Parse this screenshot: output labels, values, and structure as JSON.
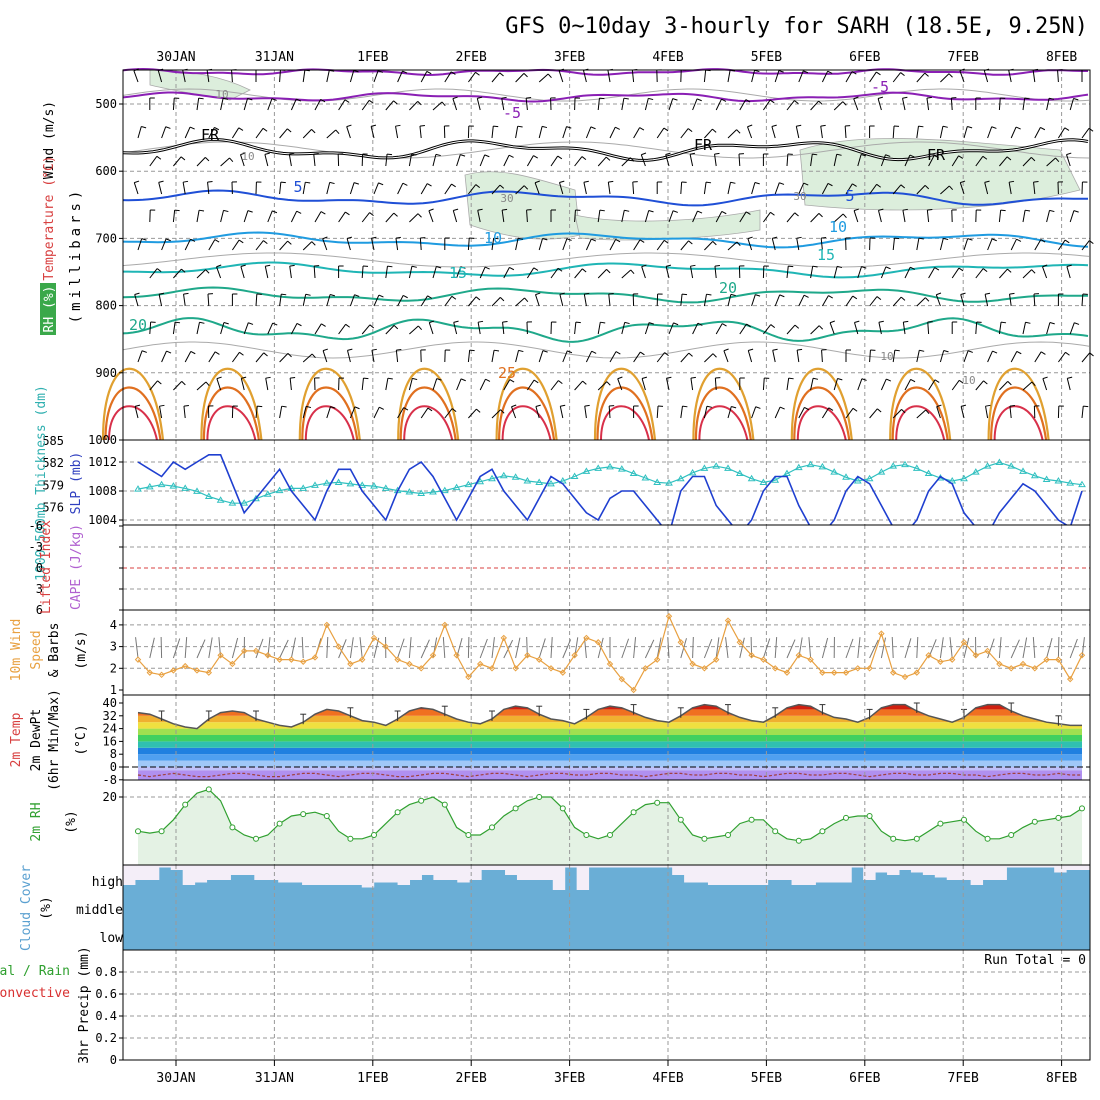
{
  "title": "GFS 0~10day 3-hourly for SARH (18.5E, 9.25N)",
  "dates": [
    "30JAN",
    "31JAN",
    "1FEB",
    "2FEB",
    "3FEB",
    "4FEB",
    "5FEB",
    "6FEB",
    "7FEB",
    "8FEB"
  ],
  "colors": {
    "grid": "#999999",
    "purple": "#8a1fb4",
    "freeze": "#000000",
    "blue": "#1f4fd6",
    "lightblue": "#1f9be0",
    "teal": "#1fb5b5",
    "tealgreen": "#1fa88a",
    "orange": "#e0a030",
    "darkorange": "#e07020",
    "red": "#d8304a",
    "slp": "#1f3fd0",
    "thick": "#30c0c0",
    "wind": "#e8a040",
    "rh": "#30a030",
    "cloud": "#6aaed6",
    "rhfill": "#e4f2e4"
  },
  "panels": {
    "upper": {
      "ylabel_wind": "Wind (m/s)",
      "ylabel_temp": "Temperature (°C)",
      "ylabel_rh": "RH (%)",
      "ylabel_mb": "(millibars)",
      "yticks": [
        "500",
        "600",
        "700",
        "800",
        "900",
        "1000"
      ],
      "contour_labels": [
        "-5",
        "-5",
        "FR",
        "FR",
        "FR",
        "5",
        "5",
        "10",
        "10",
        "15",
        "15",
        "20",
        "20",
        "25",
        "10",
        "10",
        "10",
        "30",
        "30",
        "10"
      ]
    },
    "slp": {
      "ylabel_thick": "1000-500mb Thickness (dm)",
      "ylabel_slp": "SLP (mb)",
      "thick_ticks": [
        "585",
        "582",
        "579",
        "576"
      ],
      "slp_ticks": [
        "1012",
        "1008",
        "1004"
      ]
    },
    "li": {
      "ylabel_li": "Lifted Index",
      "ylabel_cape": "CAPE (J/kg)",
      "ticks": [
        "-6",
        "-3",
        "0",
        "3",
        "6"
      ]
    },
    "wind10": {
      "ylabel1": "10m Wind",
      "ylabel2": "Speed",
      "ylabel3": "& Barbs",
      "ylabel_unit": "(m/s)",
      "ticks": [
        "4",
        "3",
        "2",
        "1"
      ]
    },
    "temp2m": {
      "ylabel1": "2m Temp",
      "ylabel2": "2m DewPt",
      "ylabel3": "(6hr Min/Max)",
      "ylabel_unit": "(°C)",
      "ticks": [
        "40",
        "32",
        "24",
        "16",
        "8",
        "0",
        "-8"
      ]
    },
    "rh2m": {
      "ylabel": "2m RH",
      "ylabel_unit": "(%)",
      "ticks": [
        "20"
      ]
    },
    "cloud": {
      "ylabel": "Cloud Cover",
      "ylabel_unit": "(%)",
      "levels": [
        "high",
        "middle",
        "low"
      ]
    },
    "precip": {
      "ylabel1": "Total / Rain",
      "ylabel2": "Convective",
      "ylabel3": "3hr Precip (mm)",
      "ticks": [
        "0.8",
        "0.6",
        "0.4",
        "0.2",
        "0"
      ],
      "run_total": "Run Total = 0"
    }
  },
  "chart_data": [
    {
      "type": "line",
      "panel": "slp",
      "series_label": "SLP (mb)",
      "ylim": [
        1000,
        1014
      ],
      "values": [
        1012,
        1011,
        1010,
        1012,
        1011,
        1012,
        1013,
        1013,
        1009,
        1005,
        1007,
        1009,
        1011,
        1008,
        1006,
        1004,
        1008,
        1011,
        1011,
        1008,
        1006,
        1004,
        1008,
        1011,
        1012,
        1010,
        1007,
        1004,
        1007,
        1010,
        1011,
        1008,
        1006,
        1004,
        1007,
        1010,
        1009,
        1007,
        1005,
        1004,
        1007,
        1008,
        1008,
        1006,
        1004,
        1002,
        1008,
        1010,
        1010,
        1006,
        1004,
        1002,
        1004,
        1008,
        1010,
        1010,
        1006,
        1003,
        1002,
        1004,
        1008,
        1010,
        1009,
        1006,
        1003,
        1002,
        1004,
        1008,
        1010,
        1009,
        1005,
        1003,
        1002,
        1005,
        1007,
        1009,
        1008,
        1006,
        1004,
        1003,
        1008
      ]
    },
    {
      "type": "line",
      "panel": "slp",
      "series_label": "1000-500mb Thickness (dm)",
      "ylim": [
        574,
        585
      ],
      "values": [
        578.5,
        578.8,
        579.1,
        578.9,
        578.6,
        578.2,
        577.5,
        577,
        576.6,
        576.6,
        577.2,
        577.8,
        578.3,
        578.6,
        578.6,
        579,
        579.3,
        579.4,
        579.2,
        579,
        578.9,
        578.6,
        578.3,
        578.1,
        577.9,
        578.1,
        578.3,
        578.7,
        579.1,
        579.5,
        579.9,
        580.3,
        580.1,
        579.6,
        579.4,
        579.2,
        579.6,
        580.2,
        580.9,
        581.3,
        581.5,
        581.2,
        580.6,
        580,
        579.4,
        579.3,
        579.9,
        580.7,
        581.3,
        581.6,
        581.3,
        580.6,
        579.9,
        579.4,
        579.7,
        580.6,
        581.4,
        581.8,
        581.5,
        580.8,
        580.1,
        579.6,
        579.9,
        580.8,
        581.6,
        581.8,
        581.3,
        580.6,
        580,
        579.6,
        579.9,
        580.8,
        581.6,
        582.1,
        581.6,
        580.9,
        580.3,
        579.8,
        579.6,
        579.3,
        579.1
      ]
    },
    {
      "type": "line",
      "panel": "wind10",
      "series_label": "10m Wind Speed (m/s)",
      "ylim": [
        0.9,
        4.6
      ],
      "values": [
        2.4,
        1.8,
        1.7,
        1.9,
        2.1,
        1.9,
        1.8,
        2.6,
        2.2,
        2.8,
        2.8,
        2.6,
        2.4,
        2.4,
        2.3,
        2.5,
        4.0,
        3.0,
        2.2,
        2.4,
        3.4,
        3.0,
        2.4,
        2.2,
        2.0,
        2.6,
        4.0,
        2.6,
        1.6,
        2.2,
        2.0,
        3.4,
        2.0,
        2.6,
        2.4,
        2.0,
        1.8,
        2.6,
        3.4,
        3.2,
        2.2,
        1.5,
        1.0,
        2.0,
        2.4,
        4.4,
        3.2,
        2.2,
        2.0,
        2.4,
        4.2,
        3.2,
        2.6,
        2.4,
        2.0,
        1.8,
        2.6,
        2.4,
        1.8,
        1.8,
        1.8,
        2.0,
        2.0,
        3.6,
        1.8,
        1.6,
        1.8,
        2.6,
        2.3,
        2.4,
        3.2,
        2.6,
        2.8,
        2.2,
        2.0,
        2.2,
        2.0,
        2.4,
        2.4,
        1.5,
        2.6
      ]
    },
    {
      "type": "area",
      "panel": "temp2m",
      "series_label": "2m Temp (°C)",
      "ylim": [
        -10,
        42
      ],
      "values": [
        34,
        33,
        30,
        27,
        25,
        24,
        30,
        34,
        35,
        34,
        30,
        28,
        26,
        25,
        28,
        33,
        36,
        35,
        32,
        29,
        28,
        26,
        30,
        35,
        37,
        36,
        33,
        30,
        28,
        27,
        30,
        36,
        38,
        37,
        33,
        30,
        29,
        27,
        31,
        36,
        38,
        37,
        34,
        31,
        29,
        28,
        32,
        37,
        39,
        38,
        34,
        31,
        29,
        28,
        32,
        37,
        39,
        38,
        34,
        31,
        30,
        28,
        31,
        37,
        39,
        39,
        35,
        32,
        30,
        28,
        31,
        37,
        39,
        39,
        35,
        32,
        30,
        28,
        27,
        26,
        26
      ]
    },
    {
      "type": "line",
      "panel": "temp2m",
      "series_label": "2m DewPt (°C)",
      "ylim": [
        -10,
        42
      ],
      "values": [
        -5,
        -6,
        -5,
        -4,
        -5,
        -6,
        -6,
        -5,
        -4,
        -4,
        -5,
        -6,
        -6,
        -5,
        -4,
        -4,
        -5,
        -6,
        -5,
        -4,
        -4,
        -5,
        -6,
        -6,
        -5,
        -4,
        -4,
        -5,
        -6,
        -5,
        -4,
        -4,
        -5,
        -6,
        -5,
        -4,
        -4,
        -5,
        -5,
        -4,
        -4,
        -5,
        -5,
        -6,
        -5,
        -4,
        -4,
        -5,
        -5,
        -4,
        -4,
        -5,
        -5,
        -6,
        -5,
        -4,
        -4,
        -5,
        -5,
        -4,
        -4,
        -5,
        -6,
        -5,
        -4,
        -4,
        -5,
        -5,
        -4,
        -4,
        -5,
        -5,
        -6,
        -5,
        -4,
        -4,
        -5,
        -5,
        -4,
        -5,
        -5
      ]
    },
    {
      "type": "area",
      "panel": "rh2m",
      "series_label": "2m RH (%)",
      "ylim": [
        4,
        25
      ],
      "values": [
        11,
        10.5,
        11,
        14,
        18,
        21,
        22,
        19,
        12,
        10,
        9,
        10,
        13,
        15,
        15.5,
        16,
        15,
        11,
        9,
        9,
        10,
        13,
        16,
        18,
        19,
        20,
        18,
        12,
        10,
        10,
        12,
        15,
        17,
        19,
        20,
        20,
        17,
        12,
        10,
        9,
        10,
        13,
        16,
        18,
        18.5,
        18.5,
        14,
        10,
        9,
        9.5,
        10,
        13,
        14,
        14,
        11,
        9,
        8.5,
        9,
        11,
        13,
        14.5,
        15,
        15,
        11,
        9,
        8.5,
        9,
        11,
        13,
        13.5,
        14,
        11,
        9,
        9,
        10,
        12,
        13.5,
        14,
        14.5,
        15,
        17
      ]
    },
    {
      "type": "bar",
      "panel": "cloud",
      "series_label": "Cloud Cover high (%)",
      "values": [
        20,
        40,
        40,
        90,
        80,
        20,
        30,
        40,
        40,
        60,
        60,
        40,
        40,
        30,
        30,
        20,
        20,
        20,
        20,
        20,
        10,
        30,
        30,
        20,
        40,
        60,
        40,
        40,
        30,
        40,
        80,
        80,
        60,
        40,
        40,
        40,
        0,
        90,
        0,
        90,
        90,
        90,
        90,
        90,
        90,
        90,
        60,
        30,
        30,
        20,
        20,
        20,
        20,
        20,
        40,
        40,
        20,
        20,
        30,
        30,
        30,
        90,
        40,
        70,
        60,
        80,
        70,
        60,
        50,
        40,
        40,
        20,
        40,
        40,
        90,
        90,
        90,
        90,
        70,
        80,
        80
      ]
    }
  ]
}
